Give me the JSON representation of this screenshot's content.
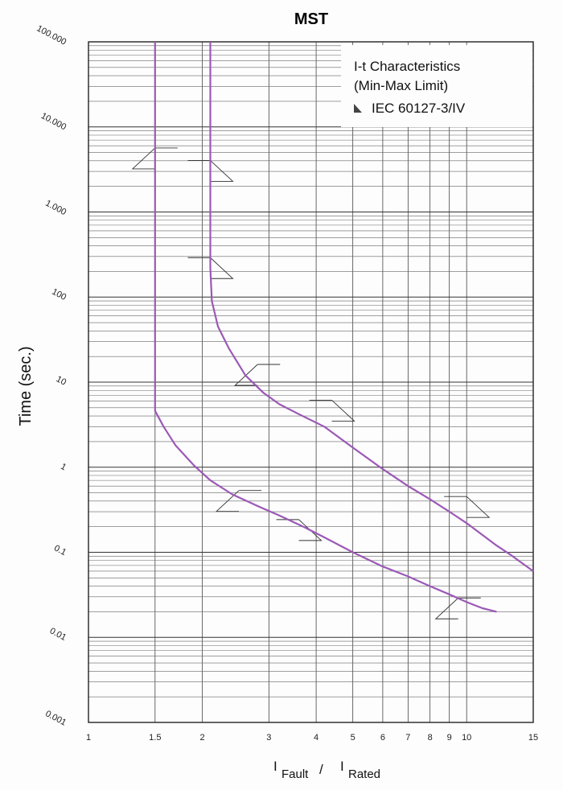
{
  "chart_data": {
    "type": "line",
    "title": "MST",
    "ylabel": "Time (sec.)",
    "xlabel": {
      "main1": "I",
      "sub1": "Fault",
      "sep": "/",
      "main2": "I",
      "sub2": "Rated"
    },
    "x_scale": "log",
    "y_scale": "log",
    "xlim": [
      1,
      15
    ],
    "ylim": [
      0.001,
      100000
    ],
    "grid": true,
    "x_ticks": [
      {
        "v": 1,
        "label": "1"
      },
      {
        "v": 1.5,
        "label": "1.5"
      },
      {
        "v": 2,
        "label": "2"
      },
      {
        "v": 3,
        "label": "3"
      },
      {
        "v": 4,
        "label": "4"
      },
      {
        "v": 5,
        "label": "5"
      },
      {
        "v": 6,
        "label": "6"
      },
      {
        "v": 7,
        "label": "7"
      },
      {
        "v": 8,
        "label": "8"
      },
      {
        "v": 9,
        "label": "9"
      },
      {
        "v": 10,
        "label": "10"
      },
      {
        "v": 15,
        "label": "15"
      }
    ],
    "y_ticks": [
      {
        "v": 100000,
        "label": "100.000"
      },
      {
        "v": 10000,
        "label": "10.000"
      },
      {
        "v": 1000,
        "label": "1.000"
      },
      {
        "v": 100,
        "label": "100"
      },
      {
        "v": 10,
        "label": "10"
      },
      {
        "v": 1,
        "label": "1"
      },
      {
        "v": 0.1,
        "label": "0.1"
      },
      {
        "v": 0.01,
        "label": "0.01"
      },
      {
        "v": 0.001,
        "label": "0.001"
      }
    ],
    "legend": {
      "lines": [
        "I-t Characteristics",
        "(Min-Max Limit)",
        "IEC 60127-3/IV"
      ],
      "placement": "top-right"
    },
    "series": [
      {
        "color": "#9b59b6",
        "x": [
          1.5,
          1.5,
          1.5,
          1.58,
          1.7,
          1.9,
          2.1,
          2.4,
          2.8,
          3.2,
          3.7,
          4.2,
          5,
          6,
          7,
          8,
          9,
          10,
          11,
          12
        ],
        "y": [
          100000,
          100,
          4.6,
          3.0,
          1.8,
          1.05,
          0.7,
          0.48,
          0.35,
          0.27,
          0.2,
          0.15,
          0.1,
          0.068,
          0.052,
          0.04,
          0.032,
          0.026,
          0.022,
          0.02
        ]
      },
      {
        "color": "#9b59b6",
        "x": [
          2.1,
          2.1,
          2.1,
          2.12,
          2.2,
          2.35,
          2.6,
          2.9,
          3.2,
          3.6,
          4.2,
          5,
          6,
          7,
          8,
          9,
          10,
          11,
          12,
          13,
          15
        ],
        "y": [
          100000,
          1000,
          220,
          90,
          45,
          25,
          12,
          7.5,
          5.5,
          4.2,
          3.0,
          1.7,
          0.95,
          0.6,
          0.42,
          0.3,
          0.22,
          0.16,
          0.12,
          0.095,
          0.06
        ]
      }
    ]
  }
}
